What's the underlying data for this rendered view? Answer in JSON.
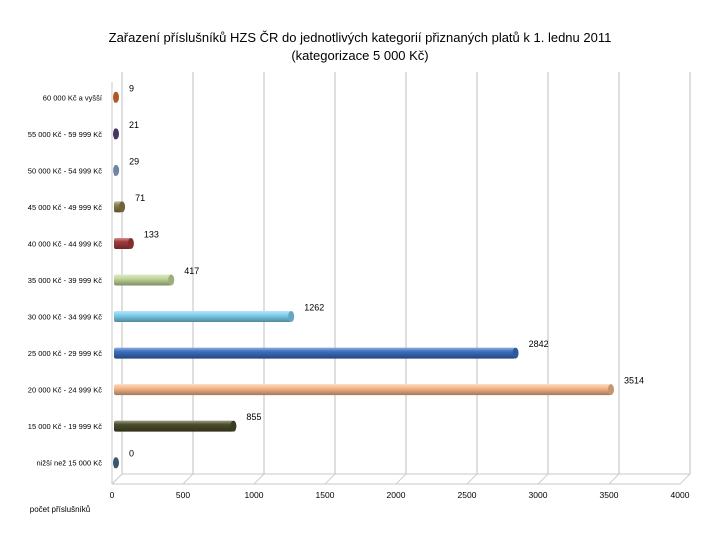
{
  "chart_data": {
    "type": "bar",
    "orientation": "horizontal",
    "title": "Zařazení příslušníků HZS ČR do jednotlivých kategorií přiznaných platů  k 1. lednu 2011",
    "subtitle": "(kategorizace 5 000 Kč)",
    "xlabel": "počet příslušníků",
    "ylabel": "",
    "xlim": [
      0,
      4000
    ],
    "xticks": [
      0,
      500,
      1000,
      1500,
      2000,
      2500,
      3000,
      3500,
      4000
    ],
    "grid": true,
    "legend": "none",
    "categories": [
      "nižší než 15 000 Kč",
      "15 000 Kč - 19 999 Kč",
      "20 000 Kč - 24 999 Kč",
      "25 000 Kč - 29 999 Kč",
      "30 000 Kč - 34 999 Kč",
      "35 000 Kč - 39 999 Kč",
      "40 000 Kč - 44 999 Kč",
      "45 000 Kč - 49 999 Kč",
      "50 000 Kč - 54 999 Kč",
      "55 000 Kč - 59 999 Kč",
      "60 000 Kč a vyšší"
    ],
    "values": [
      0,
      855,
      3514,
      2842,
      1262,
      417,
      133,
      71,
      29,
      21,
      9
    ],
    "colors": [
      "#4a6a8c",
      "#4b4b2a",
      "#f8b98a",
      "#3b6fc0",
      "#7fd0f0",
      "#c3d99a",
      "#a33a3a",
      "#8a7e4a",
      "#8aa6d0",
      "#55447a",
      "#d4702a"
    ]
  }
}
